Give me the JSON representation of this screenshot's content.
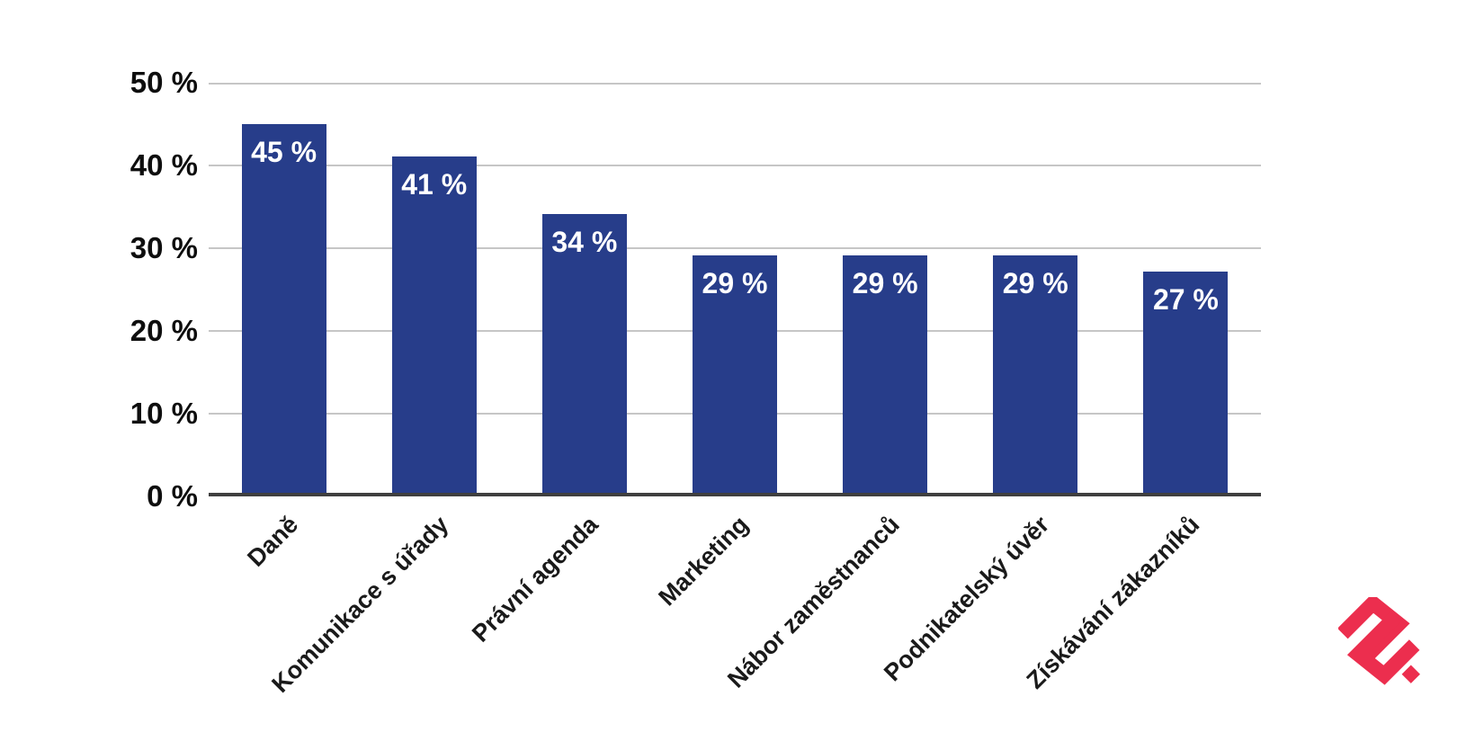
{
  "chart_data": {
    "type": "bar",
    "title": "",
    "xlabel": "",
    "ylabel": "",
    "categories": [
      "Daně",
      "Komunikace s úřady",
      "Právní agenda",
      "Marketing",
      "Nábor zaměstnanců",
      "Podnikatelský úvěr",
      "Získávání zákazníků"
    ],
    "values": [
      45,
      41,
      34,
      29,
      29,
      29,
      27
    ],
    "value_labels": [
      "45 %",
      "41 %",
      "34 %",
      "29 %",
      "29 %",
      "29 %",
      "27 %"
    ],
    "ylim": [
      0,
      50
    ],
    "ytick_labels": [
      "50 %",
      "40 %",
      "30 %",
      "20 %",
      "10 %",
      "0 %"
    ],
    "grid": "horizontal-gridlines-on",
    "legend": "none",
    "bar_color": "#273d8a",
    "value_label_color": "#ffffff",
    "gridline_color": "#c6c6c6",
    "baseline_color": "#3f3f3f",
    "axis_label_color": "#0e0e0e",
    "category_label_rotation_deg": -45
  },
  "branding": {
    "logo_icon": "brand-logo-icon",
    "logo_color": "#ec2e4e"
  }
}
